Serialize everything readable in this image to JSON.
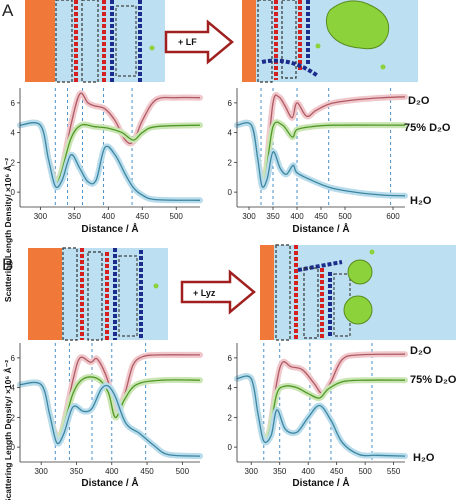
{
  "panels": [
    {
      "letter": "A",
      "arrow_label": "+ LF"
    },
    {
      "letter": "B",
      "arrow_label": "+ Lyz"
    }
  ],
  "y_axis_label": "Scattering Length Density/ ×10⁶ Å⁻²",
  "series_labels": {
    "d2o": "D₂O",
    "mix": "75% D₂O",
    "h2o": "H₂O"
  },
  "colors": {
    "d2o": "#b05a64",
    "mix": "#4f9a26",
    "h2o": "#3c86a0",
    "band_d2o": "#f0c8cc",
    "band_mix": "#cce5b4",
    "band_h2o": "#b8dcec",
    "dash": "#4a90c8",
    "substrate": "#f07838",
    "water": "#bcdff2",
    "protein": "#8cd23a"
  },
  "chart_data": [
    {
      "type": "line",
      "panel": "A",
      "position": "left",
      "xlabel": "Distance / Å",
      "ylabel": "Scattering Length Density/ ×10⁶ Å⁻²",
      "xlim": [
        270,
        535
      ],
      "ylim": [
        -1,
        7
      ],
      "xticks": [
        300,
        350,
        400,
        450,
        500
      ],
      "yticks": [
        0,
        2,
        4,
        6
      ],
      "dashed_x": [
        322,
        340,
        362,
        393,
        435
      ],
      "series": [
        {
          "key": "d2o",
          "points": [
            [
              270,
              4.5
            ],
            [
              300,
              4.5
            ],
            [
              312,
              2.2
            ],
            [
              322,
              0.8
            ],
            [
              330,
              1.2
            ],
            [
              345,
              4.5
            ],
            [
              358,
              6.6
            ],
            [
              370,
              6.0
            ],
            [
              380,
              5.8
            ],
            [
              395,
              5.6
            ],
            [
              410,
              4.8
            ],
            [
              425,
              3.5
            ],
            [
              437,
              3.4
            ],
            [
              450,
              4.8
            ],
            [
              470,
              6.2
            ],
            [
              500,
              6.35
            ],
            [
              535,
              6.35
            ]
          ]
        },
        {
          "key": "mix",
          "points": [
            [
              270,
              4.5
            ],
            [
              300,
              4.5
            ],
            [
              312,
              2.2
            ],
            [
              322,
              0.6
            ],
            [
              330,
              1.2
            ],
            [
              345,
              3.6
            ],
            [
              360,
              4.5
            ],
            [
              380,
              4.4
            ],
            [
              400,
              4.3
            ],
            [
              420,
              4.0
            ],
            [
              437,
              3.5
            ],
            [
              450,
              4.0
            ],
            [
              470,
              4.4
            ],
            [
              535,
              4.5
            ]
          ]
        },
        {
          "key": "h2o",
          "points": [
            [
              270,
              4.5
            ],
            [
              300,
              4.5
            ],
            [
              312,
              2.2
            ],
            [
              322,
              0.4
            ],
            [
              332,
              0.8
            ],
            [
              345,
              2.5
            ],
            [
              358,
              1.6
            ],
            [
              370,
              0.7
            ],
            [
              382,
              0.8
            ],
            [
              395,
              3.0
            ],
            [
              410,
              2.5
            ],
            [
              425,
              1.2
            ],
            [
              437,
              0.3
            ],
            [
              450,
              -0.2
            ],
            [
              470,
              -0.5
            ],
            [
              535,
              -0.55
            ]
          ]
        }
      ]
    },
    {
      "type": "line",
      "panel": "A",
      "position": "right",
      "xlabel": "Distance / Å",
      "ylabel": "",
      "xlim": [
        275,
        625
      ],
      "ylim": [
        -1,
        7
      ],
      "xticks": [
        300,
        350,
        400,
        450,
        500,
        600
      ],
      "yticks": [
        0,
        2,
        4,
        6
      ],
      "dashed_x": [
        325,
        350,
        400,
        466,
        595
      ],
      "series": [
        {
          "key": "d2o",
          "points": [
            [
              275,
              4.5
            ],
            [
              305,
              4.5
            ],
            [
              318,
              2.3
            ],
            [
              327,
              0.8
            ],
            [
              335,
              1.3
            ],
            [
              350,
              6.0
            ],
            [
              362,
              6.4
            ],
            [
              375,
              5.8
            ],
            [
              390,
              5.0
            ],
            [
              400,
              6.0
            ],
            [
              420,
              5.1
            ],
            [
              440,
              5.5
            ],
            [
              470,
              5.95
            ],
            [
              520,
              6.2
            ],
            [
              580,
              6.35
            ],
            [
              625,
              6.4
            ]
          ]
        },
        {
          "key": "mix",
          "points": [
            [
              275,
              4.5
            ],
            [
              305,
              4.5
            ],
            [
              318,
              2.3
            ],
            [
              327,
              0.6
            ],
            [
              335,
              1.2
            ],
            [
              350,
              4.4
            ],
            [
              370,
              4.5
            ],
            [
              390,
              3.7
            ],
            [
              400,
              4.2
            ],
            [
              430,
              4.4
            ],
            [
              480,
              4.5
            ],
            [
              625,
              4.5
            ]
          ]
        },
        {
          "key": "h2o",
          "points": [
            [
              275,
              4.5
            ],
            [
              305,
              4.5
            ],
            [
              318,
              2.3
            ],
            [
              327,
              0.4
            ],
            [
              338,
              0.9
            ],
            [
              350,
              2.7
            ],
            [
              365,
              1.6
            ],
            [
              378,
              1.2
            ],
            [
              392,
              1.8
            ],
            [
              400,
              1.3
            ],
            [
              430,
              0.8
            ],
            [
              470,
              0.3
            ],
            [
              520,
              0.0
            ],
            [
              580,
              -0.2
            ],
            [
              625,
              -0.25
            ]
          ]
        }
      ]
    },
    {
      "type": "line",
      "panel": "B",
      "position": "left",
      "xlabel": "Distance / Å",
      "ylabel": "Scattering Length Density/ ×10⁶ Å⁻²",
      "xlim": [
        270,
        525
      ],
      "ylim": [
        -1,
        7
      ],
      "xticks": [
        300,
        350,
        400,
        450,
        500
      ],
      "yticks": [
        0,
        2,
        4,
        6
      ],
      "dashed_x": [
        320,
        340,
        372,
        400,
        448
      ],
      "series": [
        {
          "key": "d2o",
          "points": [
            [
              270,
              4.2
            ],
            [
              300,
              4.2
            ],
            [
              312,
              2.2
            ],
            [
              322,
              0.7
            ],
            [
              330,
              1.2
            ],
            [
              345,
              4.5
            ],
            [
              355,
              6.0
            ],
            [
              370,
              5.7
            ],
            [
              380,
              5.9
            ],
            [
              395,
              4.4
            ],
            [
              405,
              2.2
            ],
            [
              418,
              3.5
            ],
            [
              430,
              5.5
            ],
            [
              445,
              6.1
            ],
            [
              470,
              6.2
            ],
            [
              525,
              6.2
            ]
          ]
        },
        {
          "key": "mix",
          "points": [
            [
              270,
              4.2
            ],
            [
              300,
              4.2
            ],
            [
              312,
              2.2
            ],
            [
              322,
              0.5
            ],
            [
              330,
              1.1
            ],
            [
              345,
              3.6
            ],
            [
              360,
              4.6
            ],
            [
              380,
              4.6
            ],
            [
              395,
              3.7
            ],
            [
              405,
              2.0
            ],
            [
              418,
              3.2
            ],
            [
              435,
              4.2
            ],
            [
              470,
              4.5
            ],
            [
              525,
              4.5
            ]
          ]
        },
        {
          "key": "h2o",
          "points": [
            [
              270,
              4.2
            ],
            [
              300,
              4.2
            ],
            [
              312,
              2.2
            ],
            [
              322,
              0.3
            ],
            [
              332,
              0.9
            ],
            [
              345,
              2.7
            ],
            [
              360,
              2.4
            ],
            [
              372,
              2.6
            ],
            [
              385,
              3.9
            ],
            [
              395,
              4.1
            ],
            [
              405,
              3.4
            ],
            [
              420,
              1.6
            ],
            [
              440,
              0.9
            ],
            [
              460,
              0.1
            ],
            [
              480,
              -0.5
            ],
            [
              525,
              -0.6
            ]
          ]
        }
      ]
    },
    {
      "type": "line",
      "panel": "B",
      "position": "right",
      "xlabel": "Distance / Å",
      "ylabel": "",
      "xlim": [
        275,
        570
      ],
      "ylim": [
        -1,
        7
      ],
      "xticks": [
        300,
        350,
        400,
        450,
        500,
        550
      ],
      "yticks": [
        0,
        2,
        4,
        6
      ],
      "dashed_x": [
        322,
        350,
        403,
        440,
        512
      ],
      "series": [
        {
          "key": "d2o",
          "points": [
            [
              275,
              4.6
            ],
            [
              300,
              4.6
            ],
            [
              312,
              2.2
            ],
            [
              322,
              0.6
            ],
            [
              332,
              1.1
            ],
            [
              345,
              4.4
            ],
            [
              355,
              5.7
            ],
            [
              370,
              5.4
            ],
            [
              390,
              5.2
            ],
            [
              410,
              4.3
            ],
            [
              425,
              3.6
            ],
            [
              440,
              4.4
            ],
            [
              460,
              5.9
            ],
            [
              490,
              6.2
            ],
            [
              570,
              6.25
            ]
          ]
        },
        {
          "key": "mix",
          "points": [
            [
              275,
              4.6
            ],
            [
              300,
              4.6
            ],
            [
              312,
              2.2
            ],
            [
              322,
              0.5
            ],
            [
              332,
              1.0
            ],
            [
              345,
              3.6
            ],
            [
              360,
              4.1
            ],
            [
              380,
              4.0
            ],
            [
              400,
              3.6
            ],
            [
              420,
              3.3
            ],
            [
              435,
              3.9
            ],
            [
              460,
              4.4
            ],
            [
              500,
              4.5
            ],
            [
              570,
              4.5
            ]
          ]
        },
        {
          "key": "h2o",
          "points": [
            [
              275,
              4.6
            ],
            [
              300,
              4.6
            ],
            [
              312,
              2.2
            ],
            [
              322,
              0.4
            ],
            [
              335,
              0.8
            ],
            [
              345,
              2.5
            ],
            [
              360,
              1.2
            ],
            [
              380,
              1.0
            ],
            [
              400,
              2.0
            ],
            [
              420,
              2.8
            ],
            [
              440,
              1.8
            ],
            [
              460,
              0.3
            ],
            [
              490,
              -0.5
            ],
            [
              520,
              -0.55
            ],
            [
              570,
              -0.6
            ]
          ]
        }
      ]
    }
  ]
}
